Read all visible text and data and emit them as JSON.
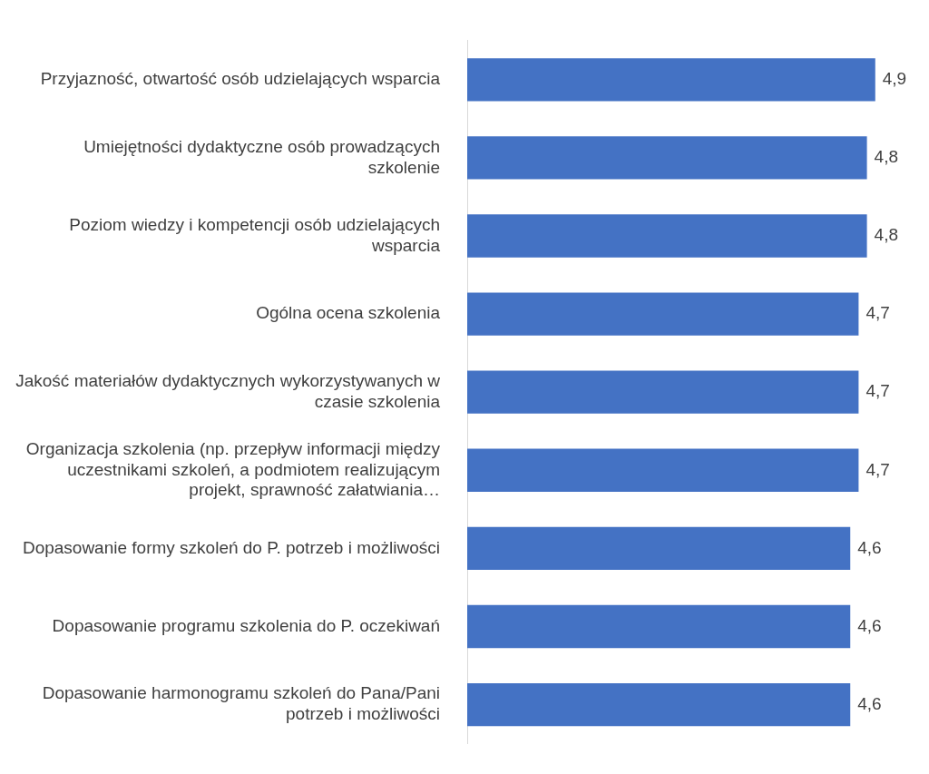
{
  "chart_data": {
    "type": "bar",
    "orientation": "horizontal",
    "categories": [
      "Przyjazność, otwartość osób udzielających wsparcia",
      "Umiejętności dydaktyczne osób prowadzących szkolenie",
      "Poziom wiedzy i kompetencji osób udzielających wsparcia",
      "Ogólna ocena szkolenia",
      "Jakość materiałów dydaktycznych wykorzystywanych w czasie szkolenia",
      "Organizacja szkolenia (np. przepływ informacji między uczestnikami szkoleń, a podmiotem realizującym projekt, sprawność załatwiania…",
      "Dopasowanie formy szkoleń do P. potrzeb i możliwości",
      "Dopasowanie programu szkolenia do P. oczekiwań",
      "Dopasowanie harmonogramu szkoleń do Pana/Pani potrzeb i możliwości"
    ],
    "values": [
      4.9,
      4.8,
      4.8,
      4.7,
      4.7,
      4.7,
      4.6,
      4.6,
      4.6
    ],
    "value_labels": [
      "4,9",
      "4,8",
      "4,8",
      "4,7",
      "4,7",
      "4,7",
      "4,6",
      "4,6",
      "4,6"
    ],
    "color": "#4472c4",
    "legend": false,
    "tick_labels": "y"
  }
}
